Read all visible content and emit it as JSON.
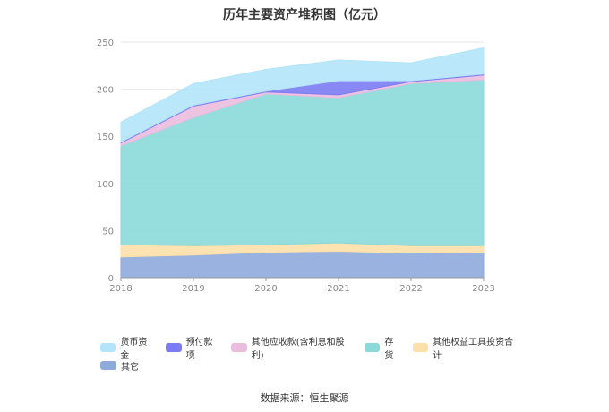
{
  "chart_data": {
    "type": "area",
    "stacked": true,
    "title": "历年主要资产堆积图（亿元）",
    "x": [
      "2018",
      "2019",
      "2020",
      "2021",
      "2022",
      "2023"
    ],
    "ylim": [
      0,
      250
    ],
    "yticks": [
      0,
      50,
      100,
      150,
      200,
      250
    ],
    "grid": true,
    "legend_position": "bottom",
    "series": [
      {
        "name": "其它",
        "color": "#8eaadb",
        "values": [
          22,
          24,
          27,
          28,
          26,
          27
        ]
      },
      {
        "name": "其他权益工具投资合计",
        "color": "#fde0a9",
        "values": [
          13,
          10,
          8,
          9,
          8,
          7
        ]
      },
      {
        "name": "存货",
        "color": "#8bd9d9",
        "values": [
          105,
          136,
          160,
          154,
          172,
          176
        ]
      },
      {
        "name": "其他应收款(含利息和股利)",
        "color": "#ebbcdf",
        "values": [
          3,
          12,
          2,
          3,
          2,
          5
        ]
      },
      {
        "name": "预付款项",
        "color": "#7b7cf3",
        "values": [
          1,
          1,
          1,
          15,
          1,
          1
        ]
      },
      {
        "name": "货币资金",
        "color": "#b3e4fa",
        "values": [
          21,
          23,
          23,
          22,
          19,
          28
        ]
      }
    ],
    "legend_order": [
      "货币资金",
      "预付款项",
      "其他应收款(含利息和股利)",
      "存货",
      "其他权益工具投资合计",
      "其它"
    ]
  },
  "source_label": "数据来源：恒生聚源"
}
